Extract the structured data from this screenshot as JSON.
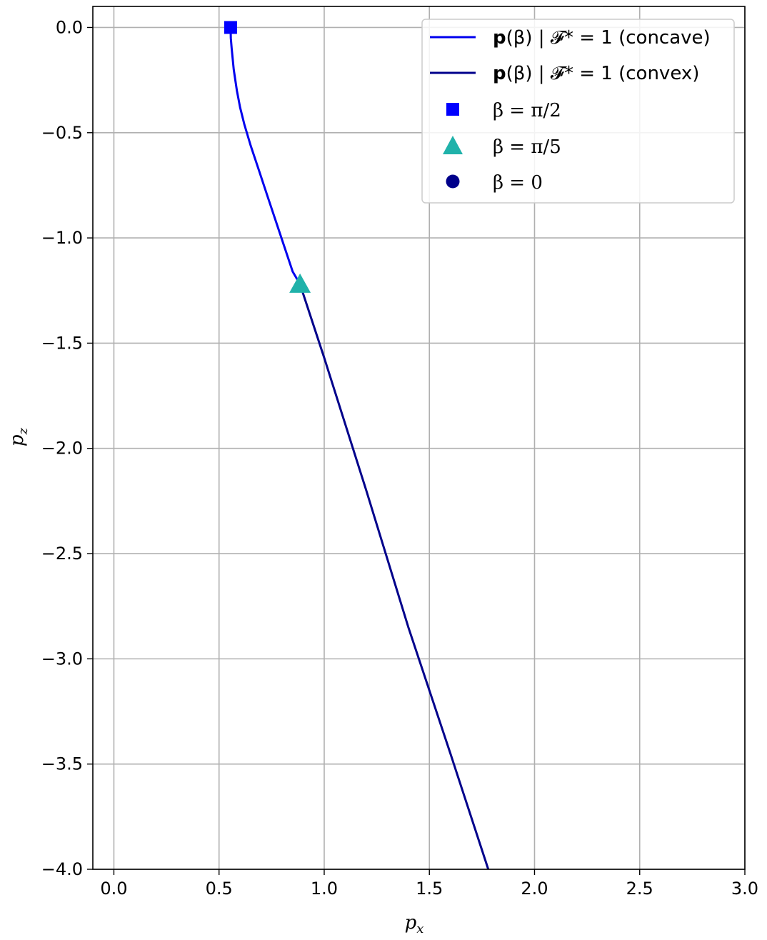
{
  "chart_data": {
    "type": "line",
    "title": "",
    "xlabel": "p",
    "xlabel_sub": "x",
    "ylabel": "p",
    "ylabel_sub": "z",
    "xlim": [
      -0.1,
      3.0
    ],
    "ylim": [
      -4.0,
      0.1
    ],
    "xticks": [
      0.0,
      0.5,
      1.0,
      1.5,
      2.0,
      2.5,
      3.0
    ],
    "yticks": [
      0.0,
      -0.5,
      -1.0,
      -1.5,
      -2.0,
      -2.5,
      -3.0,
      -3.5,
      -4.0
    ],
    "xtick_labels": [
      "0.0",
      "0.5",
      "1.0",
      "1.5",
      "2.0",
      "2.5",
      "3.0"
    ],
    "ytick_labels": [
      "0.0",
      "−0.5",
      "−1.0",
      "−1.5",
      "−2.0",
      "−2.5",
      "−3.0",
      "−3.5",
      "−4.0"
    ],
    "grid": true,
    "legend_position": "top-right",
    "series": [
      {
        "name": "p(β) | F* = 1 (concave)",
        "legend_bold": "p",
        "legend_rest": "(β) | 𝓕* = 1 (concave)",
        "color": "#0000ee",
        "x": [
          0.555,
          0.556,
          0.56,
          0.57,
          0.585,
          0.6,
          0.62,
          0.65,
          0.69,
          0.73,
          0.77,
          0.81,
          0.85,
          0.885
        ],
        "y": [
          0.0,
          -0.05,
          -0.1,
          -0.2,
          -0.3,
          -0.38,
          -0.46,
          -0.56,
          -0.68,
          -0.8,
          -0.92,
          -1.04,
          -1.16,
          -1.22
        ]
      },
      {
        "name": "p(β) | F* = 1 (convex)",
        "legend_bold": "p",
        "legend_rest": "(β) | 𝓕* = 1 (convex)",
        "color": "#00008b",
        "x": [
          0.885,
          1.0,
          1.2,
          1.4,
          1.6,
          1.78
        ],
        "y": [
          -1.22,
          -1.57,
          -2.2,
          -2.85,
          -3.45,
          -4.0
        ]
      }
    ],
    "markers": [
      {
        "label": "β = π/2",
        "shape": "square",
        "color": "#0000ff",
        "x": 0.555,
        "y": 0.0
      },
      {
        "label": "β = π/5",
        "shape": "triangle",
        "color": "#20b2aa",
        "x": 0.885,
        "y": -1.22
      },
      {
        "label": "β = 0",
        "shape": "circle",
        "color": "#00008b",
        "x": null,
        "y": null
      }
    ]
  }
}
